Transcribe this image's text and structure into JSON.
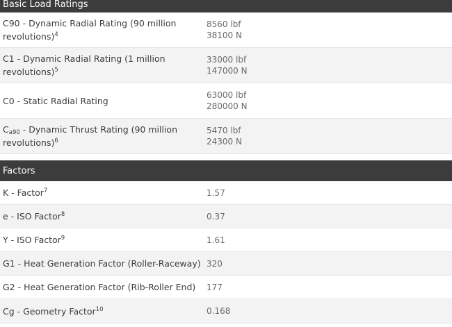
{
  "basic_load_ratings": {
    "header": "Basic Load Ratings",
    "rows": [
      {
        "label_main": "C90 - Dynamic Radial Rating (90 million revolutions)",
        "label_sup": "4",
        "value_lbf": "8560 lbf",
        "value_n": "38100 N"
      },
      {
        "label_main": "C1 - Dynamic Radial Rating (1 million revolutions)",
        "label_sup": "5",
        "value_lbf": "33000 lbf",
        "value_n": "147000 N"
      },
      {
        "label_main": "C0 - Static Radial Rating",
        "label_sup": "",
        "value_lbf": "63000 lbf",
        "value_n": "280000 N"
      },
      {
        "label_prefix": "C",
        "label_sub": "a90",
        "label_main": " - Dynamic Thrust Rating (90 million revolutions)",
        "label_sup": "6",
        "value_lbf": "5470 lbf",
        "value_n": "24300 N"
      }
    ]
  },
  "factors": {
    "header": "Factors",
    "rows": [
      {
        "label_main": "K - Factor",
        "label_sup": "7",
        "value": "1.57"
      },
      {
        "label_main": "e - ISO Factor",
        "label_sup": "8",
        "value": "0.37"
      },
      {
        "label_main": "Y - ISO Factor",
        "label_sup": "9",
        "value": "1.61"
      },
      {
        "label_main": "G1 - Heat Generation Factor (Roller-Raceway)",
        "label_sup": "",
        "value": "320"
      },
      {
        "label_main": "G2 - Heat Generation Factor (Rib-Roller End)",
        "label_sup": "",
        "value": "177"
      },
      {
        "label_main": "Cg - Geometry Factor",
        "label_sup": "10",
        "value": "0.168"
      }
    ]
  }
}
